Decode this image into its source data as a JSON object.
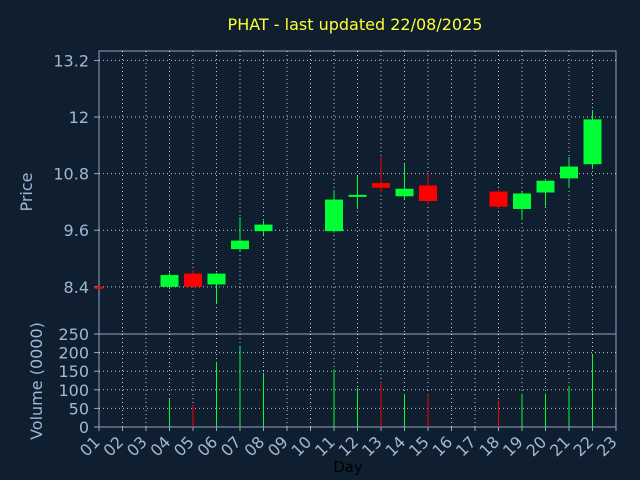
{
  "chart_data": {
    "type": "candlestick",
    "title": "PHAT - last updated 22/08/2025",
    "xlabel": "Day",
    "ylabel_price": "Price",
    "ylabel_volume": "Volume (0000)",
    "x_ticks": [
      "01",
      "02",
      "03",
      "04",
      "05",
      "06",
      "07",
      "08",
      "09",
      "10",
      "11",
      "12",
      "13",
      "14",
      "15",
      "16",
      "17",
      "18",
      "19",
      "20",
      "21",
      "22",
      "23"
    ],
    "price_ticks": [
      "8.4",
      "9.6",
      "10.8",
      "12",
      "13.2"
    ],
    "volume_ticks": [
      "0",
      "50",
      "100",
      "150",
      "200",
      "250"
    ],
    "price_ylim": [
      7.4,
      13.4
    ],
    "volume_ylim": [
      0,
      250
    ],
    "grid": true,
    "colors": {
      "background": "#0f1f30",
      "title": "#ffff33",
      "text": "#9fb8d6",
      "up": "#00ff33",
      "down": "#ff0000",
      "grid": "#ffffff"
    },
    "candles": [
      {
        "day": "01",
        "open": 8.4,
        "high": 8.42,
        "low": 8.38,
        "close": 8.38,
        "volume": 0
      },
      {
        "day": "04",
        "open": 8.4,
        "high": 8.7,
        "low": 8.35,
        "close": 8.65,
        "volume": 75
      },
      {
        "day": "05",
        "open": 8.68,
        "high": 8.75,
        "low": 8.38,
        "close": 8.4,
        "volume": 60
      },
      {
        "day": "06",
        "open": 8.45,
        "high": 8.7,
        "low": 8.05,
        "close": 8.68,
        "volume": 175
      },
      {
        "day": "07",
        "open": 9.2,
        "high": 9.88,
        "low": 9.15,
        "close": 9.38,
        "volume": 215
      },
      {
        "day": "08",
        "open": 9.58,
        "high": 9.8,
        "low": 9.5,
        "close": 9.72,
        "volume": 145
      },
      {
        "day": "11",
        "open": 9.58,
        "high": 10.45,
        "low": 9.55,
        "close": 10.25,
        "volume": 155
      },
      {
        "day": "12",
        "open": 10.32,
        "high": 10.75,
        "low": 10.05,
        "close": 10.35,
        "volume": 105
      },
      {
        "day": "13",
        "open": 10.6,
        "high": 11.15,
        "low": 10.4,
        "close": 10.5,
        "volume": 120
      },
      {
        "day": "14",
        "open": 10.32,
        "high": 11.0,
        "low": 10.25,
        "close": 10.48,
        "volume": 88
      },
      {
        "day": "15",
        "open": 10.55,
        "high": 10.8,
        "low": 10.15,
        "close": 10.22,
        "volume": 88
      },
      {
        "day": "18",
        "open": 10.42,
        "high": 10.45,
        "low": 10.05,
        "close": 10.1,
        "volume": 70
      },
      {
        "day": "19",
        "open": 10.05,
        "high": 10.42,
        "low": 9.82,
        "close": 10.38,
        "volume": 90
      },
      {
        "day": "20",
        "open": 10.4,
        "high": 10.65,
        "low": 10.1,
        "close": 10.65,
        "volume": 90
      },
      {
        "day": "21",
        "open": 10.7,
        "high": 11.15,
        "low": 10.5,
        "close": 10.95,
        "volume": 110
      },
      {
        "day": "22",
        "open": 11.0,
        "high": 12.15,
        "low": 10.9,
        "close": 11.95,
        "volume": 195
      }
    ]
  }
}
